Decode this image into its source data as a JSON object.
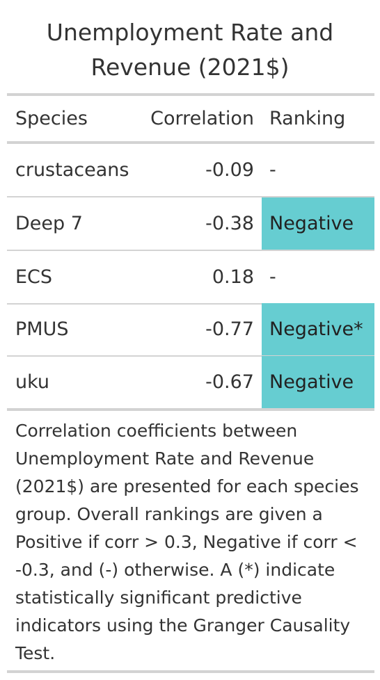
{
  "table": {
    "title": "Unemployment Rate and Revenue (2021$)",
    "columns": {
      "species": "Species",
      "correlation": "Correlation",
      "ranking": "Ranking"
    },
    "rows": [
      {
        "species": "crustaceans",
        "correlation": "-0.09",
        "ranking": "-",
        "highlight": false
      },
      {
        "species": "Deep 7",
        "correlation": "-0.38",
        "ranking": "Negative",
        "highlight": true
      },
      {
        "species": "ECS",
        "correlation": "0.18",
        "ranking": "-",
        "highlight": false
      },
      {
        "species": "PMUS",
        "correlation": "-0.77",
        "ranking": "Negative*",
        "highlight": true
      },
      {
        "species": "uku",
        "correlation": "-0.67",
        "ranking": "Negative",
        "highlight": true
      }
    ],
    "highlight_color": "#66cdd1",
    "footnote": "Correlation coefficients between Unemployment Rate and Revenue (2021$) are presented for each species group. Overall rankings are given a Positive if corr > 0.3, Negative if corr < -0.3, and (-) otherwise. A (*) indicate statistically significant predictive indicators using the Granger Causality Test."
  }
}
